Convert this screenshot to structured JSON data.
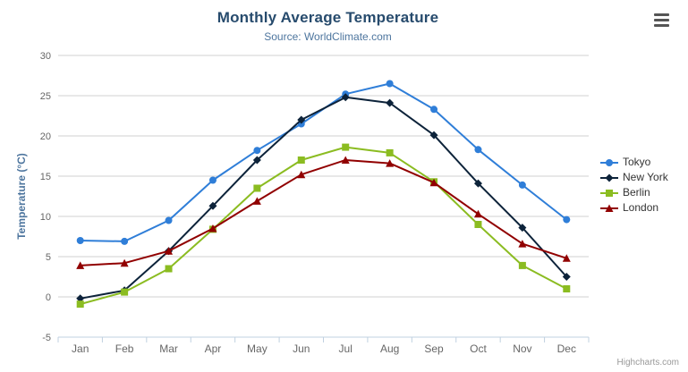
{
  "chart": {
    "title": "Monthly Average Temperature",
    "subtitle": "Source: WorldClimate.com",
    "credits": "Highcharts.com"
  },
  "chart_data": {
    "type": "line",
    "title": "Monthly Average Temperature",
    "subtitle": "Source: WorldClimate.com",
    "xlabel": "",
    "ylabel": "Temperature (°C)",
    "ylim": [
      -5,
      30
    ],
    "ytick": 5,
    "grid": true,
    "legend_position": "right",
    "categories": [
      "Jan",
      "Feb",
      "Mar",
      "Apr",
      "May",
      "Jun",
      "Jul",
      "Aug",
      "Sep",
      "Oct",
      "Nov",
      "Dec"
    ],
    "series": [
      {
        "name": "Tokyo",
        "color": "#2f7ed8",
        "marker": "circle",
        "values": [
          7.0,
          6.9,
          9.5,
          14.5,
          18.2,
          21.5,
          25.2,
          26.5,
          23.3,
          18.3,
          13.9,
          9.6
        ]
      },
      {
        "name": "New York",
        "color": "#0d233a",
        "marker": "diamond",
        "values": [
          -0.2,
          0.8,
          5.7,
          11.3,
          17.0,
          22.0,
          24.8,
          24.1,
          20.1,
          14.1,
          8.6,
          2.5
        ]
      },
      {
        "name": "Berlin",
        "color": "#8bbc21",
        "marker": "square",
        "values": [
          -0.9,
          0.6,
          3.5,
          8.4,
          13.5,
          17.0,
          18.6,
          17.9,
          14.3,
          9.0,
          3.9,
          1.0
        ]
      },
      {
        "name": "London",
        "color": "#910000",
        "marker": "triangle",
        "values": [
          3.9,
          4.2,
          5.7,
          8.5,
          11.9,
          15.2,
          17.0,
          16.6,
          14.2,
          10.3,
          6.6,
          4.8
        ]
      }
    ],
    "style": {
      "grid_color": "#d0d0d0",
      "axis_color": "#c0d0e0",
      "tick_label_color": "#666666",
      "axis_title_color": "#4d759e"
    }
  }
}
